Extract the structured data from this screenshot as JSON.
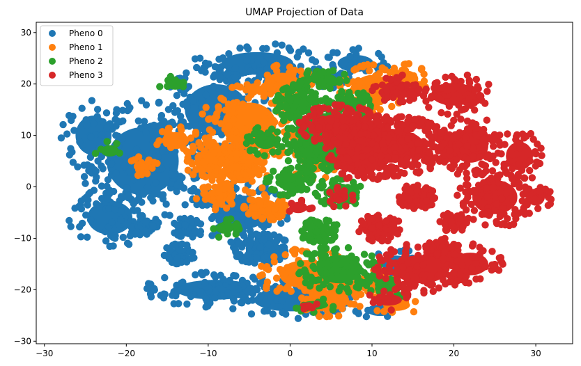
{
  "chart_data": {
    "type": "scatter",
    "title": "UMAP Projection of Data",
    "xlabel": "",
    "ylabel": "",
    "xlim": [
      -31,
      34.5
    ],
    "ylim": [
      -30.5,
      32
    ],
    "xticks": [
      -30,
      -20,
      -10,
      0,
      10,
      20,
      30
    ],
    "yticks": [
      -30,
      -20,
      -10,
      0,
      10,
      20,
      30
    ],
    "grid": false,
    "legend_position": "top-left",
    "series": [
      {
        "name": "Pheno 0",
        "color": "#1f77b4",
        "clusters": [
          {
            "x": -3.5,
            "y": -12,
            "rx": 3.5,
            "ry": 3.2,
            "n": 90
          },
          {
            "x": -13.5,
            "y": -13,
            "rx": 2,
            "ry": 2,
            "n": 40
          },
          {
            "x": -18,
            "y": -7.5,
            "rx": 2,
            "ry": 2,
            "n": 40
          },
          {
            "x": -15,
            "y": 1.5,
            "rx": 2,
            "ry": 2,
            "n": 40
          },
          {
            "x": -16.5,
            "y": 10.5,
            "rx": 2,
            "ry": 2,
            "n": 40
          },
          {
            "x": -12.5,
            "y": -8,
            "rx": 2,
            "ry": 2,
            "n": 40
          },
          {
            "x": -16,
            "y": 7,
            "rx": 2,
            "ry": 2,
            "n": 40
          },
          {
            "x": -10,
            "y": -2,
            "rx": 2,
            "ry": 2,
            "n": 30
          },
          {
            "x": -7,
            "y": 22,
            "rx": 2,
            "ry": 2,
            "n": 30
          },
          {
            "x": -2,
            "y": 22,
            "rx": 2,
            "ry": 2,
            "n": 30
          },
          {
            "x": 5,
            "y": 21,
            "rx": 2,
            "ry": 1.8,
            "n": 30
          },
          {
            "x": -18,
            "y": 5,
            "rx": 8,
            "ry": 12,
            "n": 170
          },
          {
            "x": -9,
            "y": 15,
            "rx": 7,
            "ry": 9,
            "n": 120
          },
          {
            "x": -6,
            "y": -5,
            "rx": 6,
            "ry": 6,
            "n": 80
          },
          {
            "x": -9,
            "y": -20,
            "rx": 9,
            "ry": 3.5,
            "n": 90
          },
          {
            "x": 0,
            "y": -22,
            "rx": 8,
            "ry": 4,
            "n": 70
          },
          {
            "x": -22,
            "y": -6,
            "rx": 5,
            "ry": 6,
            "n": 60
          },
          {
            "x": -24,
            "y": 10,
            "rx": 4,
            "ry": 7,
            "n": 50
          },
          {
            "x": -4,
            "y": 24,
            "rx": 8,
            "ry": 4,
            "n": 60
          },
          {
            "x": 8,
            "y": 24,
            "rx": 4,
            "ry": 3,
            "n": 30
          },
          {
            "x": 13,
            "y": -15,
            "rx": 3,
            "ry": 3,
            "n": 15
          },
          {
            "x": 11,
            "y": -24,
            "rx": 3,
            "ry": 2,
            "n": 10
          }
        ]
      },
      {
        "name": "Pheno 1",
        "color": "#ff7f0e",
        "clusters": [
          {
            "x": -3,
            "y": -4,
            "rx": 2.7,
            "ry": 2.7,
            "n": 70
          },
          {
            "x": -5,
            "y": 12,
            "rx": 6,
            "ry": 8,
            "n": 120
          },
          {
            "x": -6,
            "y": 4,
            "rx": 4,
            "ry": 6,
            "n": 90
          },
          {
            "x": 2,
            "y": -17,
            "rx": 6,
            "ry": 5,
            "n": 90
          },
          {
            "x": 5,
            "y": -22,
            "rx": 4,
            "ry": 3.5,
            "n": 50
          },
          {
            "x": 10,
            "y": 19,
            "rx": 4,
            "ry": 5,
            "n": 70
          },
          {
            "x": -1,
            "y": 20,
            "rx": 4,
            "ry": 4,
            "n": 50
          },
          {
            "x": 14,
            "y": 21,
            "rx": 3,
            "ry": 3,
            "n": 40
          },
          {
            "x": -10,
            "y": 5,
            "rx": 3,
            "ry": 4,
            "n": 40
          },
          {
            "x": -9,
            "y": -2,
            "rx": 2.5,
            "ry": 2.5,
            "n": 30
          },
          {
            "x": -14,
            "y": 9,
            "rx": 3,
            "ry": 3,
            "n": 25
          },
          {
            "x": -18,
            "y": 4,
            "rx": 2,
            "ry": 2,
            "n": 15
          },
          {
            "x": 10,
            "y": -19,
            "rx": 3,
            "ry": 3,
            "n": 30
          },
          {
            "x": 13,
            "y": -23,
            "rx": 3,
            "ry": 2,
            "n": 15
          },
          {
            "x": 3,
            "y": 5,
            "rx": 3,
            "ry": 4,
            "n": 30
          }
        ]
      },
      {
        "name": "Pheno 2",
        "color": "#2ca02c",
        "clusters": [
          {
            "x": 3.5,
            "y": -8.5,
            "rx": 2.5,
            "ry": 2.5,
            "n": 60
          },
          {
            "x": 3,
            "y": 8,
            "rx": 4,
            "ry": 6,
            "n": 150
          },
          {
            "x": 1,
            "y": 16,
            "rx": 3,
            "ry": 4,
            "n": 90
          },
          {
            "x": 6,
            "y": -1,
            "rx": 3,
            "ry": 3,
            "n": 60
          },
          {
            "x": 7,
            "y": 16,
            "rx": 3,
            "ry": 3,
            "n": 60
          },
          {
            "x": 4,
            "y": 21,
            "rx": 3,
            "ry": 2,
            "n": 40
          },
          {
            "x": 6,
            "y": -16,
            "rx": 5,
            "ry": 5,
            "n": 90
          },
          {
            "x": 0,
            "y": 1,
            "rx": 3,
            "ry": 3,
            "n": 50
          },
          {
            "x": -3,
            "y": 9,
            "rx": 2.5,
            "ry": 3,
            "n": 30
          },
          {
            "x": 3,
            "y": -23,
            "rx": 3,
            "ry": 1.5,
            "n": 15
          },
          {
            "x": 12,
            "y": -19,
            "rx": 3,
            "ry": 3,
            "n": 20
          },
          {
            "x": -8,
            "y": -8,
            "rx": 2,
            "ry": 2,
            "n": 15
          },
          {
            "x": -14,
            "y": 20,
            "rx": 2,
            "ry": 2,
            "n": 8
          },
          {
            "x": -22,
            "y": 7,
            "rx": 2,
            "ry": 2,
            "n": 6
          }
        ]
      },
      {
        "name": "Pheno 3",
        "color": "#d62728",
        "clusters": [
          {
            "x": 11,
            "y": -8,
            "rx": 2.7,
            "ry": 2.7,
            "n": 70
          },
          {
            "x": 12,
            "y": 8,
            "rx": 8,
            "ry": 6,
            "n": 330
          },
          {
            "x": 6,
            "y": 12,
            "rx": 5,
            "ry": 4,
            "n": 130
          },
          {
            "x": 15.5,
            "y": -2,
            "rx": 2.5,
            "ry": 2.5,
            "n": 50
          },
          {
            "x": 20,
            "y": -7,
            "rx": 2,
            "ry": 2,
            "n": 40
          },
          {
            "x": 18.5,
            "y": -12,
            "rx": 2,
            "ry": 2,
            "n": 40
          },
          {
            "x": 22,
            "y": 8,
            "rx": 4,
            "ry": 6,
            "n": 110
          },
          {
            "x": 25,
            "y": -2,
            "rx": 5,
            "ry": 6,
            "n": 100
          },
          {
            "x": 20,
            "y": 18,
            "rx": 5,
            "ry": 4,
            "n": 70
          },
          {
            "x": 16,
            "y": -16,
            "rx": 6,
            "ry": 5,
            "n": 100
          },
          {
            "x": 22,
            "y": -15,
            "rx": 4,
            "ry": 4,
            "n": 50
          },
          {
            "x": 28,
            "y": 6,
            "rx": 3,
            "ry": 5,
            "n": 40
          },
          {
            "x": 9,
            "y": 5,
            "rx": 4,
            "ry": 4,
            "n": 60
          },
          {
            "x": 13,
            "y": 19,
            "rx": 3,
            "ry": 3,
            "n": 40
          },
          {
            "x": 6,
            "y": -2,
            "rx": 2,
            "ry": 2,
            "n": 15
          },
          {
            "x": 1,
            "y": -4,
            "rx": 2,
            "ry": 2,
            "n": 8
          },
          {
            "x": 12,
            "y": -22,
            "rx": 3,
            "ry": 2,
            "n": 15
          },
          {
            "x": 2,
            "y": -23,
            "rx": 1.5,
            "ry": 1,
            "n": 5
          },
          {
            "x": 30,
            "y": -2,
            "rx": 2,
            "ry": 3,
            "n": 20
          }
        ]
      }
    ]
  }
}
